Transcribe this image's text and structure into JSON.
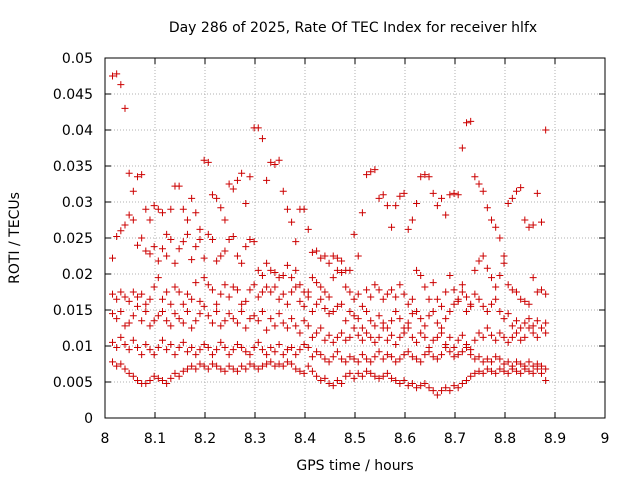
{
  "chart_data": {
    "type": "scatter",
    "title": "Day 286 of 2025, Rate Of TEC Index for receiver hlfx",
    "xlabel": "GPS time / hours",
    "ylabel": "ROTI / TECUs",
    "xlim": [
      8,
      9
    ],
    "ylim": [
      0,
      0.05
    ],
    "x_ticks": [
      "8",
      "8.1",
      "8.2",
      "8.3",
      "8.4",
      "8.5",
      "8.6",
      "8.7",
      "8.8",
      "8.9",
      "9"
    ],
    "y_ticks": [
      "0",
      "0.005",
      "0.01",
      "0.015",
      "0.02",
      "0.025",
      "0.03",
      "0.035",
      "0.04",
      "0.045",
      "0.05"
    ],
    "grid": true,
    "legend": "none",
    "marker": "plus",
    "color": "#cc0000",
    "x_start": 8.015,
    "x_step": 0.00833,
    "series": [
      {
        "values": [
          0.0475,
          0.0478,
          0.0463,
          0.043,
          0.034,
          0.0315,
          0.0335,
          0.0338,
          0.029,
          0.0275,
          0.0295,
          0.029,
          0.0285,
          0.0255,
          0.029,
          0.0322,
          0.0322,
          0.029,
          0.0275,
          0.0305,
          0.0285,
          0.0262,
          0.0358,
          0.0355,
          0.031,
          0.0305,
          0.0292,
          0.0275,
          0.0325,
          0.0318,
          0.033,
          0.034,
          0.0298,
          0.0335,
          0.0403,
          0.0403,
          0.0388,
          0.033,
          0.0355,
          0.0352,
          0.0358,
          0.0315,
          0.029,
          0.0272,
          0.0245,
          0.029,
          0.029,
          0.0262,
          0.023,
          0.0232,
          0.0222,
          0.0225,
          0.0215,
          0.0225,
          0.0222,
          0.0218,
          0.0205,
          0.0205,
          0.0255,
          0.0225,
          0.0285,
          0.0338,
          0.0342,
          0.0345,
          0.0305,
          0.031,
          0.0295,
          0.0265,
          0.0295,
          0.0308,
          0.0312,
          0.0262,
          0.0275,
          0.0298,
          0.0335,
          0.0338,
          0.0335,
          0.0312,
          0.0295,
          0.0305,
          0.0282,
          0.031,
          0.0312,
          0.031,
          0.0375,
          0.041,
          0.0412,
          0.0335,
          0.0325,
          0.0315,
          0.0292,
          0.0275,
          0.0265,
          0.025,
          0.0225,
          0.0298,
          0.0305,
          0.0315,
          0.032,
          0.0275,
          0.0265,
          0.0268,
          0.0312,
          0.0272,
          0.04
        ]
      },
      {
        "values": [
          0.0222,
          0.0252,
          0.026,
          0.0268,
          0.0282,
          0.0275,
          0.024,
          0.025,
          0.0232,
          0.0228,
          0.0238,
          0.0218,
          0.0235,
          0.0225,
          0.0248,
          0.0215,
          0.0235,
          0.0245,
          0.0255,
          0.022,
          0.0238,
          0.0248,
          0.0222,
          0.0255,
          0.0248,
          0.0218,
          0.0225,
          0.0232,
          0.0248,
          0.0252,
          0.0225,
          0.0215,
          0.0238,
          0.0248,
          0.0245,
          0.0205,
          0.0198,
          0.0215,
          0.0205,
          0.0202,
          0.0195,
          0.0198,
          0.0212,
          0.0195,
          0.0205,
          0.0185,
          0.0175,
          0.0175,
          0.0195,
          0.0188,
          0.0182,
          0.0175,
          0.0168,
          0.0195,
          0.0205,
          0.0202,
          0.0182,
          0.0175,
          0.0165,
          0.0172,
          0.0155,
          0.0178,
          0.0168,
          0.0185,
          0.0178,
          0.0165,
          0.0172,
          0.0178,
          0.0168,
          0.0185,
          0.0172,
          0.0158,
          0.0165,
          0.0205,
          0.0198,
          0.0182,
          0.0165,
          0.0188,
          0.0165,
          0.0155,
          0.0175,
          0.0198,
          0.0178,
          0.0162,
          0.0185,
          0.0168,
          0.0155,
          0.0205,
          0.0218,
          0.0225,
          0.0208,
          0.0195,
          0.0182,
          0.0198,
          0.0215,
          0.0185,
          0.0178,
          0.0175,
          0.0165,
          0.0162,
          0.0158,
          0.0195,
          0.0175,
          0.0178,
          0.0172
        ]
      },
      {
        "values": [
          0.0172,
          0.0165,
          0.0175,
          0.0168,
          0.0162,
          0.0175,
          0.0168,
          0.0172,
          0.0158,
          0.0165,
          0.0182,
          0.0195,
          0.0165,
          0.0175,
          0.0158,
          0.0182,
          0.0175,
          0.0158,
          0.0172,
          0.0165,
          0.0188,
          0.0162,
          0.0195,
          0.0185,
          0.0178,
          0.0158,
          0.0172,
          0.0185,
          0.0168,
          0.0182,
          0.0178,
          0.0158,
          0.0162,
          0.0178,
          0.0185,
          0.0168,
          0.0175,
          0.0182,
          0.0175,
          0.0182,
          0.0165,
          0.0172,
          0.0158,
          0.0175,
          0.0182,
          0.0162,
          0.0155,
          0.0168,
          0.0148,
          0.0158,
          0.0165,
          0.0152,
          0.0145,
          0.0148,
          0.0155,
          0.0158,
          0.0135,
          0.0148,
          0.0142,
          0.0138,
          0.0125,
          0.0148,
          0.0135,
          0.0128,
          0.0142,
          0.0132,
          0.0125,
          0.0135,
          0.0148,
          0.0138,
          0.0125,
          0.0132,
          0.0145,
          0.0148,
          0.0138,
          0.0128,
          0.0142,
          0.0148,
          0.0132,
          0.0125,
          0.0138,
          0.0148,
          0.0158,
          0.0165,
          0.0175,
          0.0148,
          0.0158,
          0.0172,
          0.0165,
          0.0155,
          0.0148,
          0.0158,
          0.0165,
          0.0148,
          0.0138,
          0.0145,
          0.0128,
          0.0135,
          0.0125,
          0.0132,
          0.0138,
          0.0128,
          0.0135,
          0.0125,
          0.0132
        ]
      },
      {
        "values": [
          0.0145,
          0.0138,
          0.0148,
          0.0128,
          0.0132,
          0.0142,
          0.0155,
          0.0135,
          0.0148,
          0.0128,
          0.0135,
          0.0142,
          0.0148,
          0.0135,
          0.0128,
          0.0145,
          0.0138,
          0.0132,
          0.0148,
          0.0125,
          0.0135,
          0.0145,
          0.0155,
          0.0142,
          0.0132,
          0.0148,
          0.0128,
          0.0135,
          0.0145,
          0.0138,
          0.0132,
          0.0148,
          0.0125,
          0.0138,
          0.0142,
          0.0135,
          0.0148,
          0.0122,
          0.0138,
          0.0128,
          0.0145,
          0.0132,
          0.0125,
          0.0138,
          0.0128,
          0.0118,
          0.0135,
          0.0128,
          0.0112,
          0.0118,
          0.0125,
          0.0108,
          0.0115,
          0.0105,
          0.0112,
          0.0118,
          0.0108,
          0.0112,
          0.0125,
          0.0115,
          0.0108,
          0.0118,
          0.0112,
          0.0105,
          0.0112,
          0.0125,
          0.0108,
          0.0115,
          0.0102,
          0.0112,
          0.0118,
          0.0125,
          0.0112,
          0.0105,
          0.0118,
          0.0112,
          0.0098,
          0.0108,
          0.0112,
          0.0118,
          0.0102,
          0.0112,
          0.0098,
          0.0108,
          0.0115,
          0.0102,
          0.0095,
          0.0108,
          0.0118,
          0.0112,
          0.0125,
          0.0115,
          0.0108,
          0.0118,
          0.0112,
          0.0105,
          0.0112,
          0.0118,
          0.0108,
          0.0112,
          0.0125,
          0.0118,
          0.0112,
          0.0125,
          0.0118
        ]
      },
      {
        "values": [
          0.0105,
          0.0098,
          0.0112,
          0.0102,
          0.0095,
          0.0108,
          0.0098,
          0.0088,
          0.0102,
          0.0095,
          0.0088,
          0.0098,
          0.0108,
          0.0095,
          0.0102,
          0.0088,
          0.0098,
          0.0105,
          0.0092,
          0.0098,
          0.0088,
          0.0095,
          0.0102,
          0.0098,
          0.0088,
          0.0095,
          0.0105,
          0.0098,
          0.0088,
          0.0095,
          0.0102,
          0.0098,
          0.0092,
          0.0088,
          0.0098,
          0.0105,
          0.0095,
          0.0088,
          0.0098,
          0.0092,
          0.0102,
          0.0088,
          0.0095,
          0.0098,
          0.0088,
          0.0095,
          0.0102,
          0.0098,
          0.0085,
          0.0092,
          0.0088,
          0.0082,
          0.0078,
          0.0085,
          0.0092,
          0.0082,
          0.0078,
          0.0085,
          0.0082,
          0.0078,
          0.0088,
          0.0082,
          0.0078,
          0.0085,
          0.0092,
          0.0082,
          0.0088,
          0.0085,
          0.0078,
          0.0082,
          0.0088,
          0.0092,
          0.0085,
          0.0082,
          0.0078,
          0.0088,
          0.0092,
          0.0085,
          0.0082,
          0.0088,
          0.0098,
          0.0092,
          0.0085,
          0.0088,
          0.0092,
          0.0098,
          0.0088,
          0.0082,
          0.0085,
          0.0078,
          0.0082,
          0.0078,
          0.0085,
          0.0082,
          0.0075,
          0.0078,
          0.0072,
          0.0078,
          0.0075,
          0.0072,
          0.0078,
          0.0072,
          0.0075,
          0.0072,
          0.0068
        ]
      },
      {
        "values": [
          0.0078,
          0.0072,
          0.0075,
          0.0068,
          0.0062,
          0.0058,
          0.0052,
          0.0048,
          0.0048,
          0.0052,
          0.0058,
          0.0055,
          0.0052,
          0.0048,
          0.0055,
          0.0062,
          0.0058,
          0.0065,
          0.0068,
          0.0072,
          0.0068,
          0.0075,
          0.0072,
          0.0068,
          0.0075,
          0.0072,
          0.0068,
          0.0065,
          0.0072,
          0.0068,
          0.0065,
          0.0072,
          0.0068,
          0.0075,
          0.0072,
          0.0068,
          0.0072,
          0.0075,
          0.0078,
          0.0072,
          0.0075,
          0.0072,
          0.0078,
          0.0075,
          0.0068,
          0.0065,
          0.0062,
          0.0072,
          0.0065,
          0.0058,
          0.0052,
          0.0055,
          0.0048,
          0.0045,
          0.0052,
          0.0048,
          0.0058,
          0.0062,
          0.0055,
          0.0062,
          0.0058,
          0.0065,
          0.0062,
          0.0058,
          0.0055,
          0.0058,
          0.0062,
          0.0055,
          0.0052,
          0.0048,
          0.0052,
          0.0045,
          0.0048,
          0.0042,
          0.0045,
          0.0048,
          0.0042,
          0.0038,
          0.0032,
          0.0038,
          0.0042,
          0.0038,
          0.0045,
          0.0042,
          0.0048,
          0.0052,
          0.0058,
          0.0062,
          0.0065,
          0.0062,
          0.0068,
          0.0065,
          0.0062,
          0.0068,
          0.0065,
          0.0062,
          0.0068,
          0.0065,
          0.0062,
          0.0068,
          0.0065,
          0.0062,
          0.0068,
          0.0062,
          0.0052
        ]
      }
    ]
  }
}
